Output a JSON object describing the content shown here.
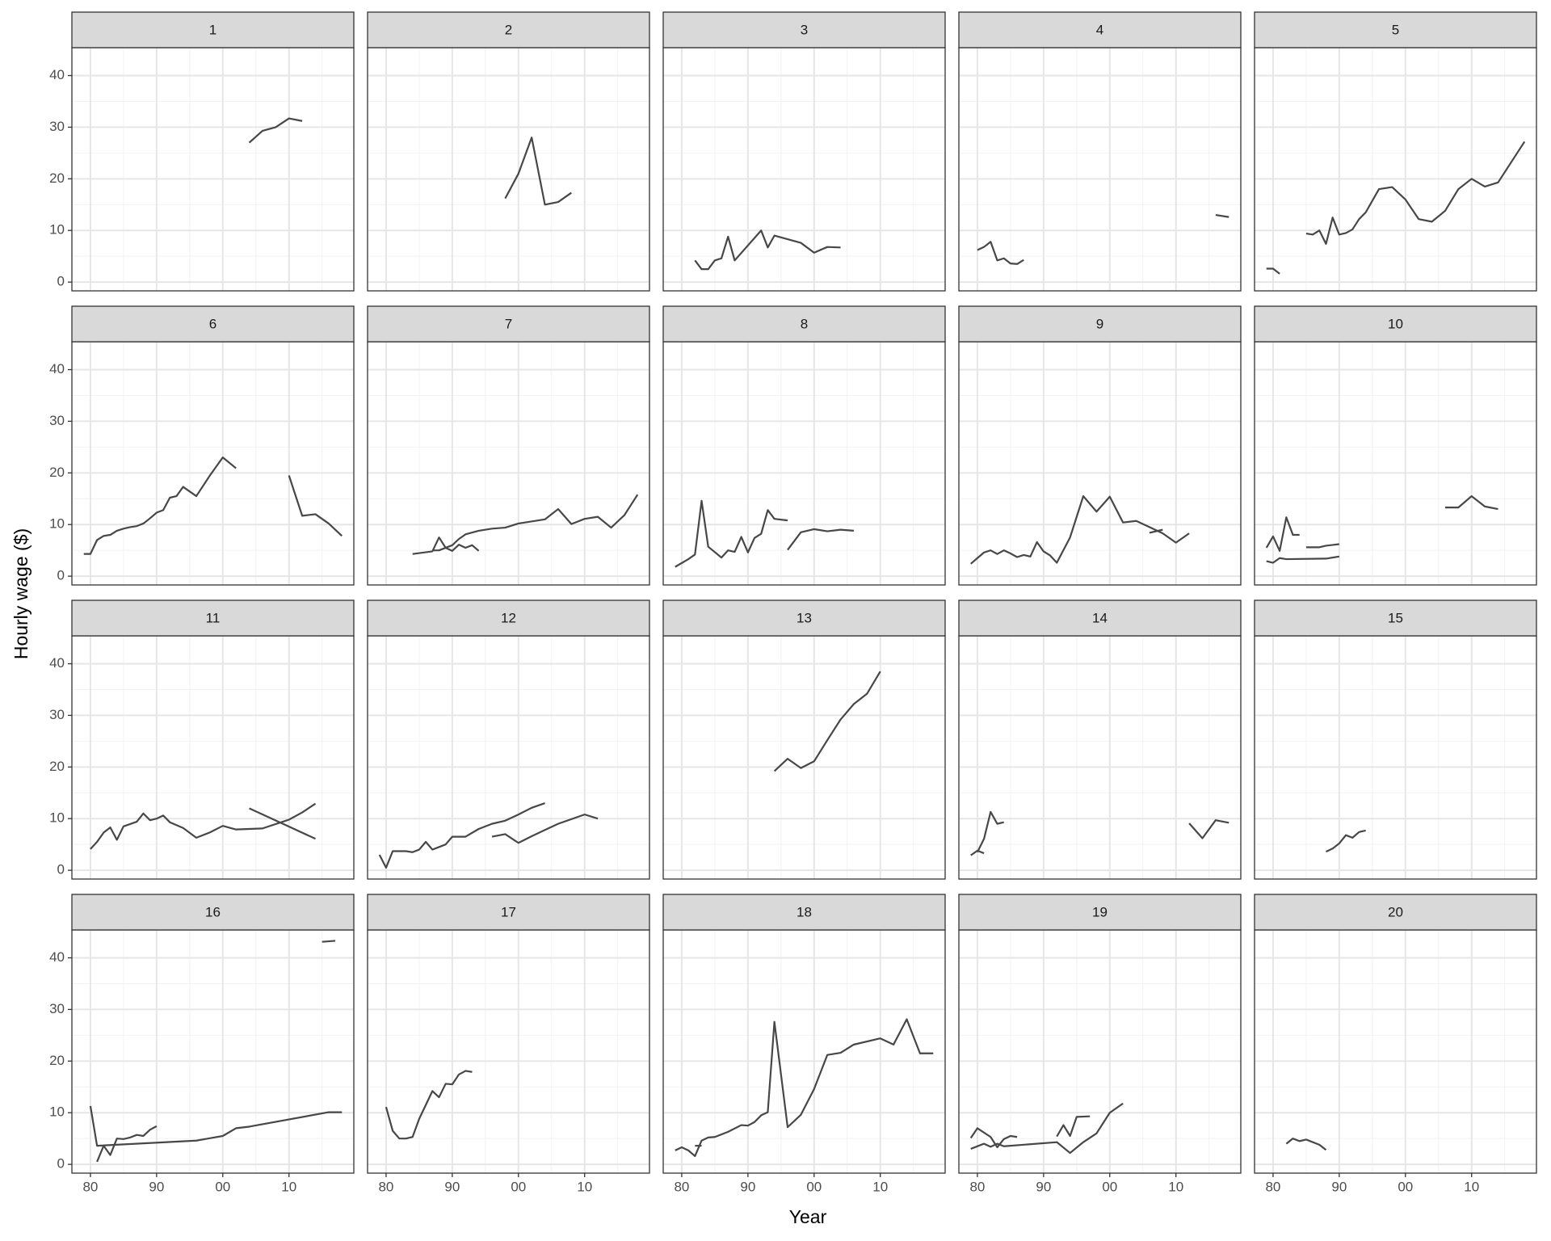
{
  "chart_data": {
    "type": "line",
    "xlabel": "Year",
    "ylabel": "Hourly wage ($)",
    "color": "#474747",
    "grid": true,
    "xlim": [
      1977.2,
      2019.8
    ],
    "ylim": [
      -1.7,
      45.4
    ],
    "xticks": [
      {
        "value": 1980,
        "label": "80"
      },
      {
        "value": 1990,
        "label": "90"
      },
      {
        "value": 2000,
        "label": "00"
      },
      {
        "value": 2010,
        "label": "10"
      }
    ],
    "yticks": [
      0,
      10,
      20,
      30,
      40
    ],
    "xminor": [
      1985,
      1995,
      2005,
      2015
    ],
    "yminor": [
      5,
      15,
      25,
      35
    ],
    "panels": [
      {
        "title": "1",
        "series": [
          {
            "x": [
              2004,
              2006,
              2008,
              2010,
              2012
            ],
            "values": [
              27,
              29.3,
              30,
              31.7,
              31.2
            ]
          }
        ]
      },
      {
        "title": "2",
        "series": [
          {
            "x": [
              1998,
              2000,
              2002,
              2004,
              2006,
              2008
            ],
            "values": [
              16.2,
              21,
              28,
              15,
              15.5,
              17.3
            ]
          }
        ]
      },
      {
        "title": "3",
        "series": [
          {
            "x": [
              1982,
              1983,
              1984,
              1985,
              1986,
              1987,
              1988,
              1992,
              1993,
              1994,
              1998,
              2000,
              2002,
              2004
            ],
            "values": [
              4.2,
              2.5,
              2.5,
              4.2,
              4.6,
              8.8,
              4.2,
              10,
              6.7,
              9,
              7.6,
              5.7,
              6.8,
              6.7
            ]
          }
        ]
      },
      {
        "title": "4",
        "series": [
          {
            "x": [
              1980,
              1981,
              1982,
              1983,
              1984,
              1985,
              1986,
              1987
            ],
            "values": [
              6.2,
              6.8,
              7.8,
              4.2,
              4.6,
              3.6,
              3.5,
              4.3
            ]
          },
          {
            "x": [
              2016,
              2018
            ],
            "values": [
              13,
              12.6
            ]
          }
        ]
      },
      {
        "title": "5",
        "series": [
          {
            "x": [
              1979,
              1980,
              1981
            ],
            "values": [
              2.6,
              2.6,
              1.6
            ]
          },
          {
            "x": [
              1985,
              1986,
              1987,
              1988,
              1989,
              1990,
              1991,
              1992,
              1993,
              1994,
              1996,
              1998,
              2000,
              2002,
              2004,
              2006,
              2008,
              2010,
              2012,
              2014,
              2018
            ],
            "values": [
              9.4,
              9.2,
              10,
              7.4,
              12.5,
              9.2,
              9.5,
              10.2,
              12.2,
              13.5,
              18,
              18.4,
              16,
              12.2,
              11.7,
              13.8,
              18,
              20,
              18.5,
              19.3,
              27.2
            ]
          }
        ]
      },
      {
        "title": "6",
        "series": [
          {
            "x": [
              1979,
              1980,
              1981,
              1982,
              1983,
              1984,
              1985,
              1986,
              1987,
              1988,
              1989,
              1990,
              1991,
              1992,
              1993,
              1994,
              1996,
              1998,
              2000,
              2002
            ],
            "values": [
              4.3,
              4.3,
              7,
              7.8,
              8,
              8.8,
              9.2,
              9.5,
              9.7,
              10.2,
              11.2,
              12.3,
              12.8,
              15.2,
              15.5,
              17.3,
              15.5,
              19.4,
              23,
              20.9
            ]
          },
          {
            "x": [
              2010,
              2012,
              2014,
              2016,
              2018
            ],
            "values": [
              19.5,
              11.7,
              12,
              10.2,
              7.8
            ]
          }
        ]
      },
      {
        "title": "7",
        "series": [
          {
            "x": [
              1984,
              1987,
              1988,
              1989,
              1990,
              1991,
              1992,
              1993,
              1994
            ],
            "values": [
              4.3,
              4.8,
              7.5,
              5.5,
              4.9,
              6.1,
              5.5,
              6,
              4.9
            ]
          },
          {
            "x": [
              1987,
              1988,
              1990,
              1991,
              1992,
              1994,
              1996,
              1998,
              2000,
              2004,
              2006,
              2008,
              2010,
              2012,
              2014,
              2016,
              2018
            ],
            "values": [
              5,
              5,
              6,
              7.2,
              8.1,
              8.8,
              9.2,
              9.4,
              10.2,
              11,
              13,
              10.1,
              11.1,
              11.5,
              9.4,
              11.8,
              15.8
            ]
          }
        ]
      },
      {
        "title": "8",
        "series": [
          {
            "x": [
              1979,
              1981,
              1982,
              1983,
              1984,
              1986,
              1987,
              1988,
              1989,
              1990,
              1991,
              1992,
              1993,
              1994,
              1996
            ],
            "values": [
              1.8,
              3.3,
              4.2,
              14.6,
              5.7,
              3.6,
              5,
              4.7,
              7.6,
              4.6,
              7.4,
              8.2,
              12.8,
              11.1,
              10.8
            ]
          },
          {
            "x": [
              1996,
              1998,
              2000,
              2002,
              2004,
              2006
            ],
            "values": [
              5.1,
              8.5,
              9.1,
              8.7,
              9,
              8.8
            ]
          }
        ]
      },
      {
        "title": "9",
        "series": [
          {
            "x": [
              1979,
              1980,
              1981,
              1982,
              1983,
              1984,
              1985,
              1986,
              1987,
              1988,
              1989,
              1990,
              1991,
              1992,
              1994,
              1996,
              1998,
              2000,
              2002,
              2004,
              2006,
              2008,
              2010,
              2012
            ],
            "values": [
              2.4,
              3.5,
              4.6,
              5,
              4.3,
              5,
              4.4,
              3.7,
              4.1,
              3.8,
              6.6,
              4.8,
              4,
              2.6,
              7.5,
              15.5,
              12.5,
              15.4,
              10.4,
              10.7,
              9.5,
              8.3,
              6.5,
              8.3
            ]
          },
          {
            "x": [
              2006,
              2008
            ],
            "values": [
              8.4,
              9
            ]
          }
        ]
      },
      {
        "title": "10",
        "series": [
          {
            "x": [
              1979,
              1980,
              1981,
              1982,
              1983,
              1984
            ],
            "values": [
              5.5,
              7.7,
              4.9,
              11.4,
              8,
              8
            ]
          },
          {
            "x": [
              1979,
              1980,
              1981,
              1982,
              1988,
              1990
            ],
            "values": [
              2.9,
              2.6,
              3.5,
              3.3,
              3.4,
              3.8
            ]
          },
          {
            "x": [
              1985,
              1987,
              1988,
              1990
            ],
            "values": [
              5.6,
              5.6,
              5.9,
              6.2
            ]
          },
          {
            "x": [
              2006,
              2008,
              2010,
              2012,
              2014
            ],
            "values": [
              13.3,
              13.3,
              15.5,
              13.5,
              13
            ]
          }
        ]
      },
      {
        "title": "11",
        "series": [
          {
            "x": [
              1980,
              1981,
              1982,
              1983,
              1984,
              1985,
              1987,
              1988,
              1989,
              1990,
              1991,
              1992,
              1994,
              1996,
              1998,
              2000,
              2002,
              2006,
              2010,
              2012,
              2014
            ],
            "values": [
              4.1,
              5.5,
              7.3,
              8.3,
              5.9,
              8.5,
              9.4,
              11,
              9.7,
              10,
              10.6,
              9.3,
              8.2,
              6.3,
              7.3,
              8.6,
              7.9,
              8.1,
              9.8,
              11.2,
              12.9
            ]
          },
          {
            "x": [
              2004,
              2014
            ],
            "values": [
              12,
              6.1
            ]
          }
        ]
      },
      {
        "title": "12",
        "series": [
          {
            "x": [
              1979,
              1980,
              1981,
              1983,
              1984,
              1985,
              1986,
              1987,
              1989,
              1990,
              1992,
              1994,
              1996,
              1998,
              2000,
              2002,
              2004
            ],
            "values": [
              3,
              0.5,
              3.7,
              3.7,
              3.5,
              4,
              5.5,
              4,
              5,
              6.5,
              6.5,
              8,
              9,
              9.6,
              10.8,
              12.1,
              13
            ]
          },
          {
            "x": [
              1996,
              1998,
              2000,
              2002,
              2004,
              2006,
              2008,
              2010,
              2012
            ],
            "values": [
              6.5,
              7,
              5.3,
              6.6,
              7.8,
              9,
              9.9,
              10.8,
              10
            ]
          }
        ]
      },
      {
        "title": "13",
        "series": [
          {
            "x": [
              1994,
              1996,
              1998,
              2000,
              2002,
              2004,
              2006,
              2008,
              2010
            ],
            "values": [
              19.2,
              21.6,
              19.8,
              21.1,
              25.2,
              29.2,
              32.2,
              34.2,
              38.5
            ]
          }
        ]
      },
      {
        "title": "14",
        "series": [
          {
            "x": [
              1979,
              1980,
              1981
            ],
            "values": [
              2.9,
              3.8,
              3.3
            ]
          },
          {
            "x": [
              1980,
              1981,
              1982,
              1983,
              1984
            ],
            "values": [
              3.5,
              6.1,
              11.3,
              9,
              9.3
            ]
          },
          {
            "x": [
              2012,
              2014,
              2016,
              2018
            ],
            "values": [
              9.1,
              6.2,
              9.7,
              9.2
            ]
          }
        ]
      },
      {
        "title": "15",
        "series": [
          {
            "x": [
              1988,
              1989,
              1990,
              1991,
              1992,
              1993,
              1994
            ],
            "values": [
              3.6,
              4.2,
              5.2,
              6.8,
              6.3,
              7.4,
              7.7
            ]
          }
        ]
      },
      {
        "title": "16",
        "series": [
          {
            "x": [
              1980,
              1981,
              1996,
              2000,
              2002,
              2004,
              2016,
              2018
            ],
            "values": [
              11.3,
              3.6,
              4.6,
              5.5,
              7,
              7.3,
              10.1,
              10.1
            ]
          },
          {
            "x": [
              1981,
              1982,
              1983,
              1984,
              1985,
              1986,
              1987,
              1988,
              1989,
              1990
            ],
            "values": [
              0.5,
              3.6,
              1.8,
              5,
              4.9,
              5.2,
              5.7,
              5.5,
              6.7,
              7.4
            ]
          },
          {
            "x": [
              2015,
              2017
            ],
            "values": [
              43.1,
              43.3
            ]
          }
        ]
      },
      {
        "title": "17",
        "series": [
          {
            "x": [
              1980,
              1981,
              1982,
              1983,
              1984,
              1985,
              1987,
              1988,
              1989,
              1990,
              1991,
              1992,
              1993
            ],
            "values": [
              11.1,
              6.5,
              5,
              5,
              5.3,
              8.8,
              14.2,
              13,
              15.6,
              15.5,
              17.4,
              18.1,
              17.9
            ]
          }
        ]
      },
      {
        "title": "18",
        "series": [
          {
            "x": [
              1979,
              1980,
              1981,
              1982,
              1983,
              1984,
              1985,
              1987,
              1989,
              1990,
              1991,
              1992,
              1993,
              1994,
              1996,
              1998,
              2000,
              2002,
              2004,
              2006,
              2010,
              2012,
              2014,
              2016,
              2018
            ],
            "values": [
              2.7,
              3.3,
              2.7,
              1.6,
              4.6,
              5.2,
              5.3,
              6.3,
              7.6,
              7.5,
              8.2,
              9.5,
              10.1,
              27.6,
              7.2,
              9.6,
              14.6,
              21.2,
              21.6,
              23.2,
              24.4,
              23.2,
              28.1,
              21.5,
              21.5
            ]
          },
          {
            "x": [
              1982,
              1983
            ],
            "values": [
              3.6,
              3.6
            ]
          }
        ]
      },
      {
        "title": "19",
        "series": [
          {
            "x": [
              1979,
              1980,
              1982,
              1983,
              1984,
              1985,
              1986
            ],
            "values": [
              5.1,
              7,
              5.3,
              3.3,
              4.9,
              5.5,
              5.3
            ]
          },
          {
            "x": [
              1979,
              1981,
              1982,
              1983,
              1984,
              1992,
              1994,
              1996,
              1998,
              2000,
              2002
            ],
            "values": [
              3,
              4,
              3.4,
              4,
              3.5,
              4.3,
              2.2,
              4.3,
              6,
              10,
              11.8
            ]
          },
          {
            "x": [
              1992,
              1993,
              1994,
              1995,
              1997
            ],
            "values": [
              5.4,
              7.6,
              5.5,
              9.2,
              9.3
            ]
          }
        ]
      },
      {
        "title": "20",
        "series": [
          {
            "x": [
              1982,
              1983,
              1984,
              1985,
              1987,
              1988
            ],
            "values": [
              4,
              5,
              4.5,
              4.8,
              3.8,
              2.8
            ]
          }
        ]
      }
    ]
  }
}
